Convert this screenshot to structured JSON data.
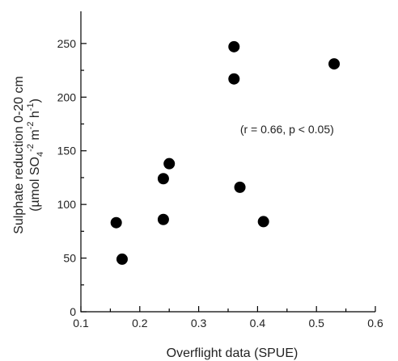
{
  "chart_data": {
    "type": "scatter",
    "title": "",
    "xlabel": "Overflight data (SPUE)",
    "ylabel_line1": "Sulphate reduction 0-20 cm",
    "ylabel_line2_parts": [
      "(µmol SO",
      "4",
      "-2",
      " m",
      "-2",
      " h",
      "-1",
      ")"
    ],
    "xlim": [
      0.1,
      0.6
    ],
    "ylim": [
      0,
      280
    ],
    "xticks": [
      0.1,
      0.2,
      0.3,
      0.4,
      0.5,
      0.6
    ],
    "xtick_labels": [
      "0.1",
      "0.2",
      "0.3",
      "0.4",
      "0.5",
      "0.6"
    ],
    "yticks": [
      0,
      50,
      100,
      150,
      200,
      250
    ],
    "ytick_labels": [
      "0",
      "50",
      "100",
      "150",
      "200",
      "250"
    ],
    "annotation": "(r = 0.66, p < 0.05)",
    "annotation_pos": {
      "x": 0.45,
      "y": 170
    },
    "grid": false,
    "points": [
      {
        "x": 0.16,
        "y": 83
      },
      {
        "x": 0.17,
        "y": 49
      },
      {
        "x": 0.24,
        "y": 124
      },
      {
        "x": 0.25,
        "y": 138
      },
      {
        "x": 0.24,
        "y": 86
      },
      {
        "x": 0.36,
        "y": 247
      },
      {
        "x": 0.36,
        "y": 217
      },
      {
        "x": 0.37,
        "y": 116
      },
      {
        "x": 0.41,
        "y": 84
      },
      {
        "x": 0.53,
        "y": 231
      }
    ]
  }
}
